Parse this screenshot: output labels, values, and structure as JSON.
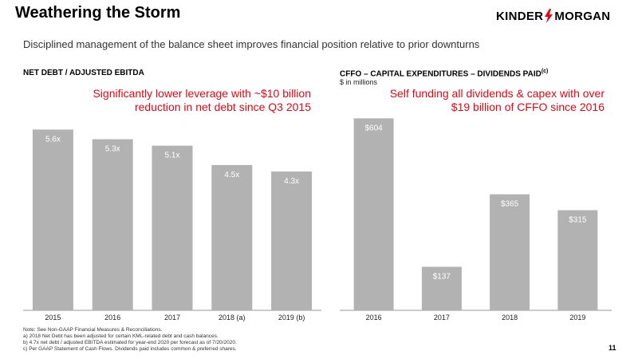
{
  "slide": {
    "title": "Weathering the Storm",
    "subtitle": "Disciplined management of the balance sheet improves financial position relative to prior downturns",
    "logo": {
      "left": "KINDER",
      "right": "MORGAN",
      "accent_color": "#e30613"
    },
    "page_number": "11"
  },
  "left_panel": {
    "heading": "NET DEBT / ADJUSTED EBITDA",
    "callout": "Significantly lower leverage with ~$10 billion reduction in net debt since Q3 2015"
  },
  "right_panel": {
    "heading": "CFFO – CAPITAL EXPENDITURES – DIVIDENDS PAID",
    "heading_superscript": "(c)",
    "subheading": "$ in millions",
    "callout": "Self funding all dividends & capex with over $19 billion of CFFO since 2016"
  },
  "footnotes": [
    "Note:  See Non-GAAP Financial Measures & Reconciliations.",
    "a)     2018 Net Debt has been adjusted for certain KML-related debt and cash balances.",
    "b)     4.7x net debt / adjusted EBITDA estimated for year-end 2020 per forecast as of 7/20/2020.",
    "c)     Per GAAP Statement of Cash Flows. Dividends paid includes common & preferred shares."
  ],
  "colors": {
    "bar": "#b2b2b2",
    "callout": "#e30613"
  },
  "chart_data": [
    {
      "type": "bar",
      "title": "NET DEBT / ADJUSTED EBITDA",
      "categories": [
        "2015",
        "2016",
        "2017",
        "2018 (a)",
        "2019 (b)"
      ],
      "values": [
        5.6,
        5.3,
        5.1,
        4.5,
        4.3
      ],
      "data_labels": [
        "5.6x",
        "5.3x",
        "5.1x",
        "4.5x",
        "4.3x"
      ],
      "ylim": [
        0,
        6.4
      ],
      "grid": false
    },
    {
      "type": "bar",
      "title": "CFFO – CAPITAL EXPENDITURES – DIVIDENDS PAID",
      "ylabel": "$ in millions",
      "categories": [
        "2016",
        "2017",
        "2018",
        "2019"
      ],
      "values": [
        604,
        137,
        365,
        315
      ],
      "data_labels": [
        "$604",
        "$137",
        "$365",
        "$315"
      ],
      "ylim": [
        0,
        650
      ],
      "grid": false
    }
  ]
}
